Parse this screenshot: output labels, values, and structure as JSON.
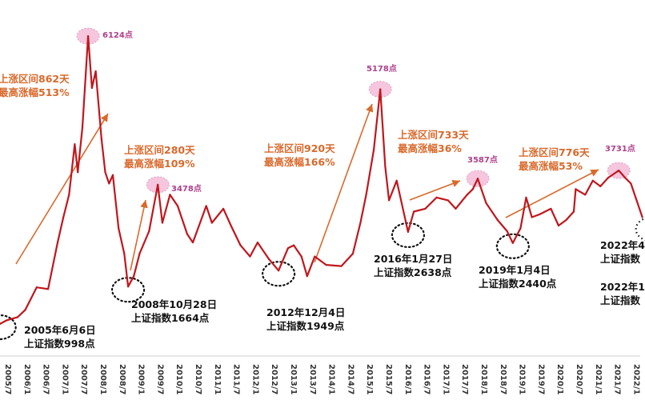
{
  "chart_data": {
    "type": "line",
    "title": "",
    "xlabel": "",
    "ylabel": "",
    "grid": false,
    "legend": "none",
    "colors": {
      "line": "#c0161c",
      "rally_arrow": "#d9692b",
      "rally_text": "#d9692b",
      "peak_text": "#b0408a",
      "peak_marker": "#f3b8d6",
      "low_text": "#111111"
    },
    "x_ticks": [
      "2005/7",
      "2006/1",
      "2006/7",
      "2007/1",
      "2007/7",
      "2008/1",
      "2008/7",
      "2009/1",
      "2009/7",
      "2010/1",
      "2010/7",
      "2011/1",
      "2011/7",
      "2012/1",
      "2012/7",
      "2013/1",
      "2013/7",
      "2014/1",
      "2014/7",
      "2015/1",
      "2015/7",
      "2016/1",
      "2016/7",
      "2017/1",
      "2017/7",
      "2018/1",
      "2018/7",
      "2019/1",
      "2019/7",
      "2020/1",
      "2020/7",
      "2021/1",
      "2021/7",
      "2022/1"
    ],
    "series": [
      {
        "points": [
          [
            2005.3,
            1150
          ],
          [
            2005.43,
            998
          ],
          [
            2005.6,
            1060
          ],
          [
            2005.9,
            1120
          ],
          [
            2006.1,
            1250
          ],
          [
            2006.4,
            1650
          ],
          [
            2006.7,
            1620
          ],
          [
            2006.95,
            2450
          ],
          [
            2007.1,
            2900
          ],
          [
            2007.25,
            3300
          ],
          [
            2007.4,
            4200
          ],
          [
            2007.48,
            3700
          ],
          [
            2007.6,
            4500
          ],
          [
            2007.75,
            6124
          ],
          [
            2007.85,
            5200
          ],
          [
            2007.95,
            5500
          ],
          [
            2008.1,
            4300
          ],
          [
            2008.2,
            3700
          ],
          [
            2008.3,
            3500
          ],
          [
            2008.4,
            3650
          ],
          [
            2008.55,
            2700
          ],
          [
            2008.7,
            2250
          ],
          [
            2008.8,
            1664
          ],
          [
            2008.95,
            1850
          ],
          [
            2009.1,
            2250
          ],
          [
            2009.35,
            2650
          ],
          [
            2009.58,
            3478
          ],
          [
            2009.7,
            2800
          ],
          [
            2009.9,
            3300
          ],
          [
            2010.1,
            3100
          ],
          [
            2010.35,
            2600
          ],
          [
            2010.5,
            2450
          ],
          [
            2010.85,
            3100
          ],
          [
            2011.0,
            2800
          ],
          [
            2011.3,
            3050
          ],
          [
            2011.5,
            2750
          ],
          [
            2011.75,
            2400
          ],
          [
            2012.0,
            2200
          ],
          [
            2012.2,
            2450
          ],
          [
            2012.5,
            2150
          ],
          [
            2012.75,
            1949
          ],
          [
            2013.0,
            2350
          ],
          [
            2013.15,
            2400
          ],
          [
            2013.35,
            2200
          ],
          [
            2013.5,
            1850
          ],
          [
            2013.7,
            2200
          ],
          [
            2014.0,
            2050
          ],
          [
            2014.4,
            2030
          ],
          [
            2014.7,
            2250
          ],
          [
            2014.9,
            2800
          ],
          [
            2015.05,
            3300
          ],
          [
            2015.25,
            4100
          ],
          [
            2015.42,
            5178
          ],
          [
            2015.55,
            3800
          ],
          [
            2015.65,
            3200
          ],
          [
            2015.85,
            3550
          ],
          [
            2016.15,
            2638
          ],
          [
            2016.3,
            3000
          ],
          [
            2016.6,
            3050
          ],
          [
            2016.9,
            3250
          ],
          [
            2017.2,
            3200
          ],
          [
            2017.4,
            3050
          ],
          [
            2017.7,
            3300
          ],
          [
            2017.85,
            3400
          ],
          [
            2017.98,
            3587
          ],
          [
            2018.2,
            3150
          ],
          [
            2018.5,
            2850
          ],
          [
            2018.75,
            2650
          ],
          [
            2018.9,
            2440
          ],
          [
            2019.1,
            2700
          ],
          [
            2019.25,
            3250
          ],
          [
            2019.4,
            2900
          ],
          [
            2019.6,
            2950
          ],
          [
            2019.9,
            3050
          ],
          [
            2020.1,
            2750
          ],
          [
            2020.3,
            2850
          ],
          [
            2020.5,
            3000
          ],
          [
            2020.55,
            3400
          ],
          [
            2020.8,
            3300
          ],
          [
            2021.0,
            3550
          ],
          [
            2021.2,
            3450
          ],
          [
            2021.4,
            3600
          ],
          [
            2021.68,
            3731
          ],
          [
            2021.85,
            3600
          ],
          [
            2022.0,
            3500
          ],
          [
            2022.15,
            3200
          ],
          [
            2022.3,
            2900
          ]
        ]
      }
    ],
    "annotations": {
      "peaks": [
        "6124点",
        "3478点",
        "5178点",
        "3587点",
        "3731点"
      ],
      "rallies": [
        [
          "上涨区间862天",
          "最高涨幅513%"
        ],
        [
          "上涨区间280天",
          "最高涨幅109%"
        ],
        [
          "上涨区间920天",
          "最高涨幅166%"
        ],
        [
          "上涨区间733天",
          "最高涨幅36%"
        ],
        [
          "上涨区间776天",
          "最高涨幅53%"
        ]
      ],
      "lows": [
        [
          "2005年6月6日",
          "上证指数998点"
        ],
        [
          "2008年10月28日",
          "上证指数1664点"
        ],
        [
          "2012年12月4日",
          "上证指数1949点"
        ],
        [
          "2016年1月27日",
          "上证指数2638点"
        ],
        [
          "2019年1月4日",
          "上证指数2440点"
        ],
        [
          "2022年4",
          "上证指数"
        ],
        [
          "2022年1",
          "上证指数"
        ]
      ]
    }
  }
}
